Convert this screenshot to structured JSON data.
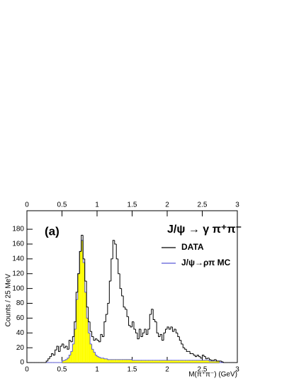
{
  "chart_data": {
    "type": "histogram",
    "label": "(a)",
    "annotation": "J/ψ → γ π⁺π⁻",
    "x_label": "M(π⁺π⁻) (GeV)",
    "y_label": "Counts / 25 MeV",
    "bins": [
      0,
      0.025,
      0.05,
      0.075,
      0.1,
      0.125,
      0.15,
      0.175,
      0.2,
      0.225,
      0.25,
      0.275,
      0.3,
      0.325,
      0.35,
      0.375,
      0.4,
      0.425,
      0.45,
      0.475,
      0.5,
      0.525,
      0.55,
      0.575,
      0.6,
      0.625,
      0.65,
      0.675,
      0.7,
      0.725,
      0.75,
      0.775,
      0.8,
      0.825,
      0.85,
      0.875,
      0.9,
      0.925,
      0.95,
      0.975,
      1,
      1.025,
      1.05,
      1.075,
      1.1,
      1.125,
      1.15,
      1.175,
      1.2,
      1.225,
      1.25,
      1.275,
      1.3,
      1.325,
      1.35,
      1.375,
      1.4,
      1.425,
      1.45,
      1.475,
      1.5,
      1.525,
      1.55,
      1.575,
      1.6,
      1.625,
      1.65,
      1.675,
      1.7,
      1.725,
      1.75,
      1.775,
      1.8,
      1.825,
      1.85,
      1.875,
      1.9,
      1.925,
      1.95,
      1.975,
      2,
      2.025,
      2.05,
      2.075,
      2.1,
      2.125,
      2.15,
      2.175,
      2.2,
      2.225,
      2.25,
      2.275,
      2.3,
      2.325,
      2.35,
      2.375,
      2.4,
      2.425,
      2.45,
      2.475,
      2.5,
      2.525,
      2.55,
      2.575,
      2.6,
      2.625,
      2.65,
      2.675,
      2.7,
      2.725,
      2.75,
      2.775,
      2.8,
      2.825,
      2.85,
      2.875,
      2.9,
      2.925,
      2.95,
      2.975,
      3
    ],
    "series": [
      {
        "name": "DATA",
        "color": "#000000",
        "fill": null,
        "values": [
          0,
          0,
          0,
          0,
          0,
          0,
          0,
          0,
          0,
          0,
          0,
          2,
          5,
          8,
          12,
          10,
          17,
          22,
          15,
          22,
          25,
          20,
          22,
          18,
          30,
          28,
          35,
          55,
          95,
          120,
          150,
          172,
          140,
          110,
          75,
          55,
          42,
          35,
          30,
          32,
          30,
          28,
          38,
          35,
          55,
          65,
          80,
          110,
          140,
          165,
          160,
          140,
          120,
          100,
          90,
          75,
          72,
          62,
          50,
          48,
          55,
          45,
          40,
          32,
          45,
          35,
          40,
          45,
          38,
          45,
          65,
          72,
          58,
          55,
          40,
          35,
          38,
          30,
          40,
          45,
          48,
          45,
          48,
          42,
          45,
          40,
          35,
          30,
          25,
          20,
          18,
          15,
          15,
          12,
          12,
          10,
          8,
          10,
          8,
          6,
          10,
          8,
          5,
          6,
          4,
          3,
          3,
          4,
          2,
          2,
          2,
          1,
          0,
          0,
          0,
          0,
          0,
          0,
          0,
          0
        ]
      },
      {
        "name": "J/ψ→ρπ MC",
        "color": "#5b5bd6",
        "fill": "#ffff00",
        "values": [
          0,
          0,
          0,
          0,
          0,
          0,
          0,
          0,
          0,
          0,
          0,
          0,
          0,
          0,
          0,
          0,
          0,
          0,
          0,
          0,
          2,
          3,
          4,
          6,
          10,
          15,
          25,
          45,
          85,
          120,
          150,
          165,
          135,
          95,
          60,
          40,
          25,
          18,
          14,
          10,
          8,
          7,
          6,
          6,
          5,
          5,
          4,
          4,
          4,
          4,
          4,
          4,
          4,
          4,
          4,
          4,
          4,
          4,
          4,
          4,
          3,
          3,
          3,
          3,
          3,
          3,
          3,
          3,
          3,
          3,
          3,
          3,
          3,
          3,
          3,
          3,
          3,
          3,
          3,
          3,
          3,
          3,
          3,
          3,
          3,
          3,
          3,
          3,
          3,
          3,
          3,
          3,
          3,
          3,
          3,
          3,
          3,
          3,
          3,
          3,
          3,
          3,
          3,
          3,
          2,
          2,
          2,
          2,
          2,
          2,
          0,
          0,
          0,
          0,
          0,
          0,
          0,
          0,
          0,
          0
        ]
      }
    ],
    "xlim": [
      0,
      3
    ],
    "xticks": [
      0,
      0.5,
      1,
      1.5,
      2,
      2.5,
      3
    ],
    "ylim": [
      0,
      205
    ],
    "yticks": [
      0,
      20,
      40,
      60,
      80,
      100,
      120,
      140,
      160,
      180
    ]
  }
}
